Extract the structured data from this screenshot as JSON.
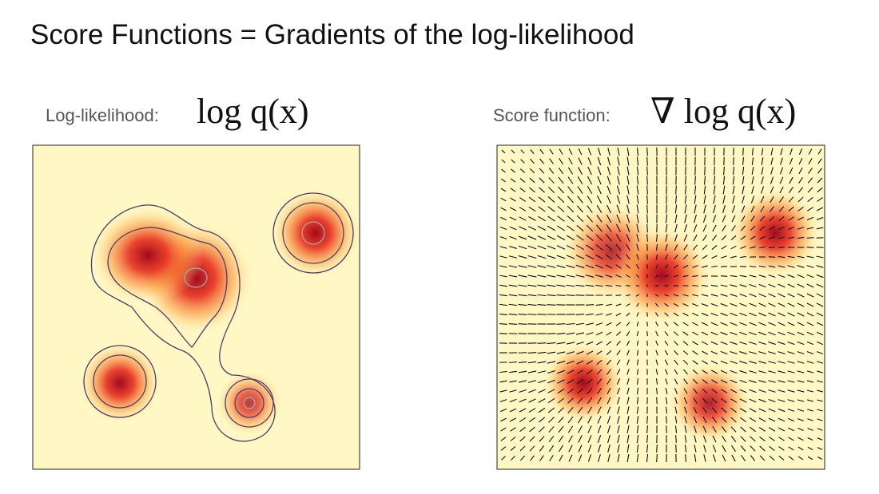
{
  "header": {
    "title": "Score Functions = Gradients of the log-likelihood"
  },
  "panels": [
    {
      "label": "Log-likelihood:",
      "formula": "log q(x)"
    },
    {
      "label": "Score function:",
      "formula": "∇ log q(x)"
    }
  ]
}
